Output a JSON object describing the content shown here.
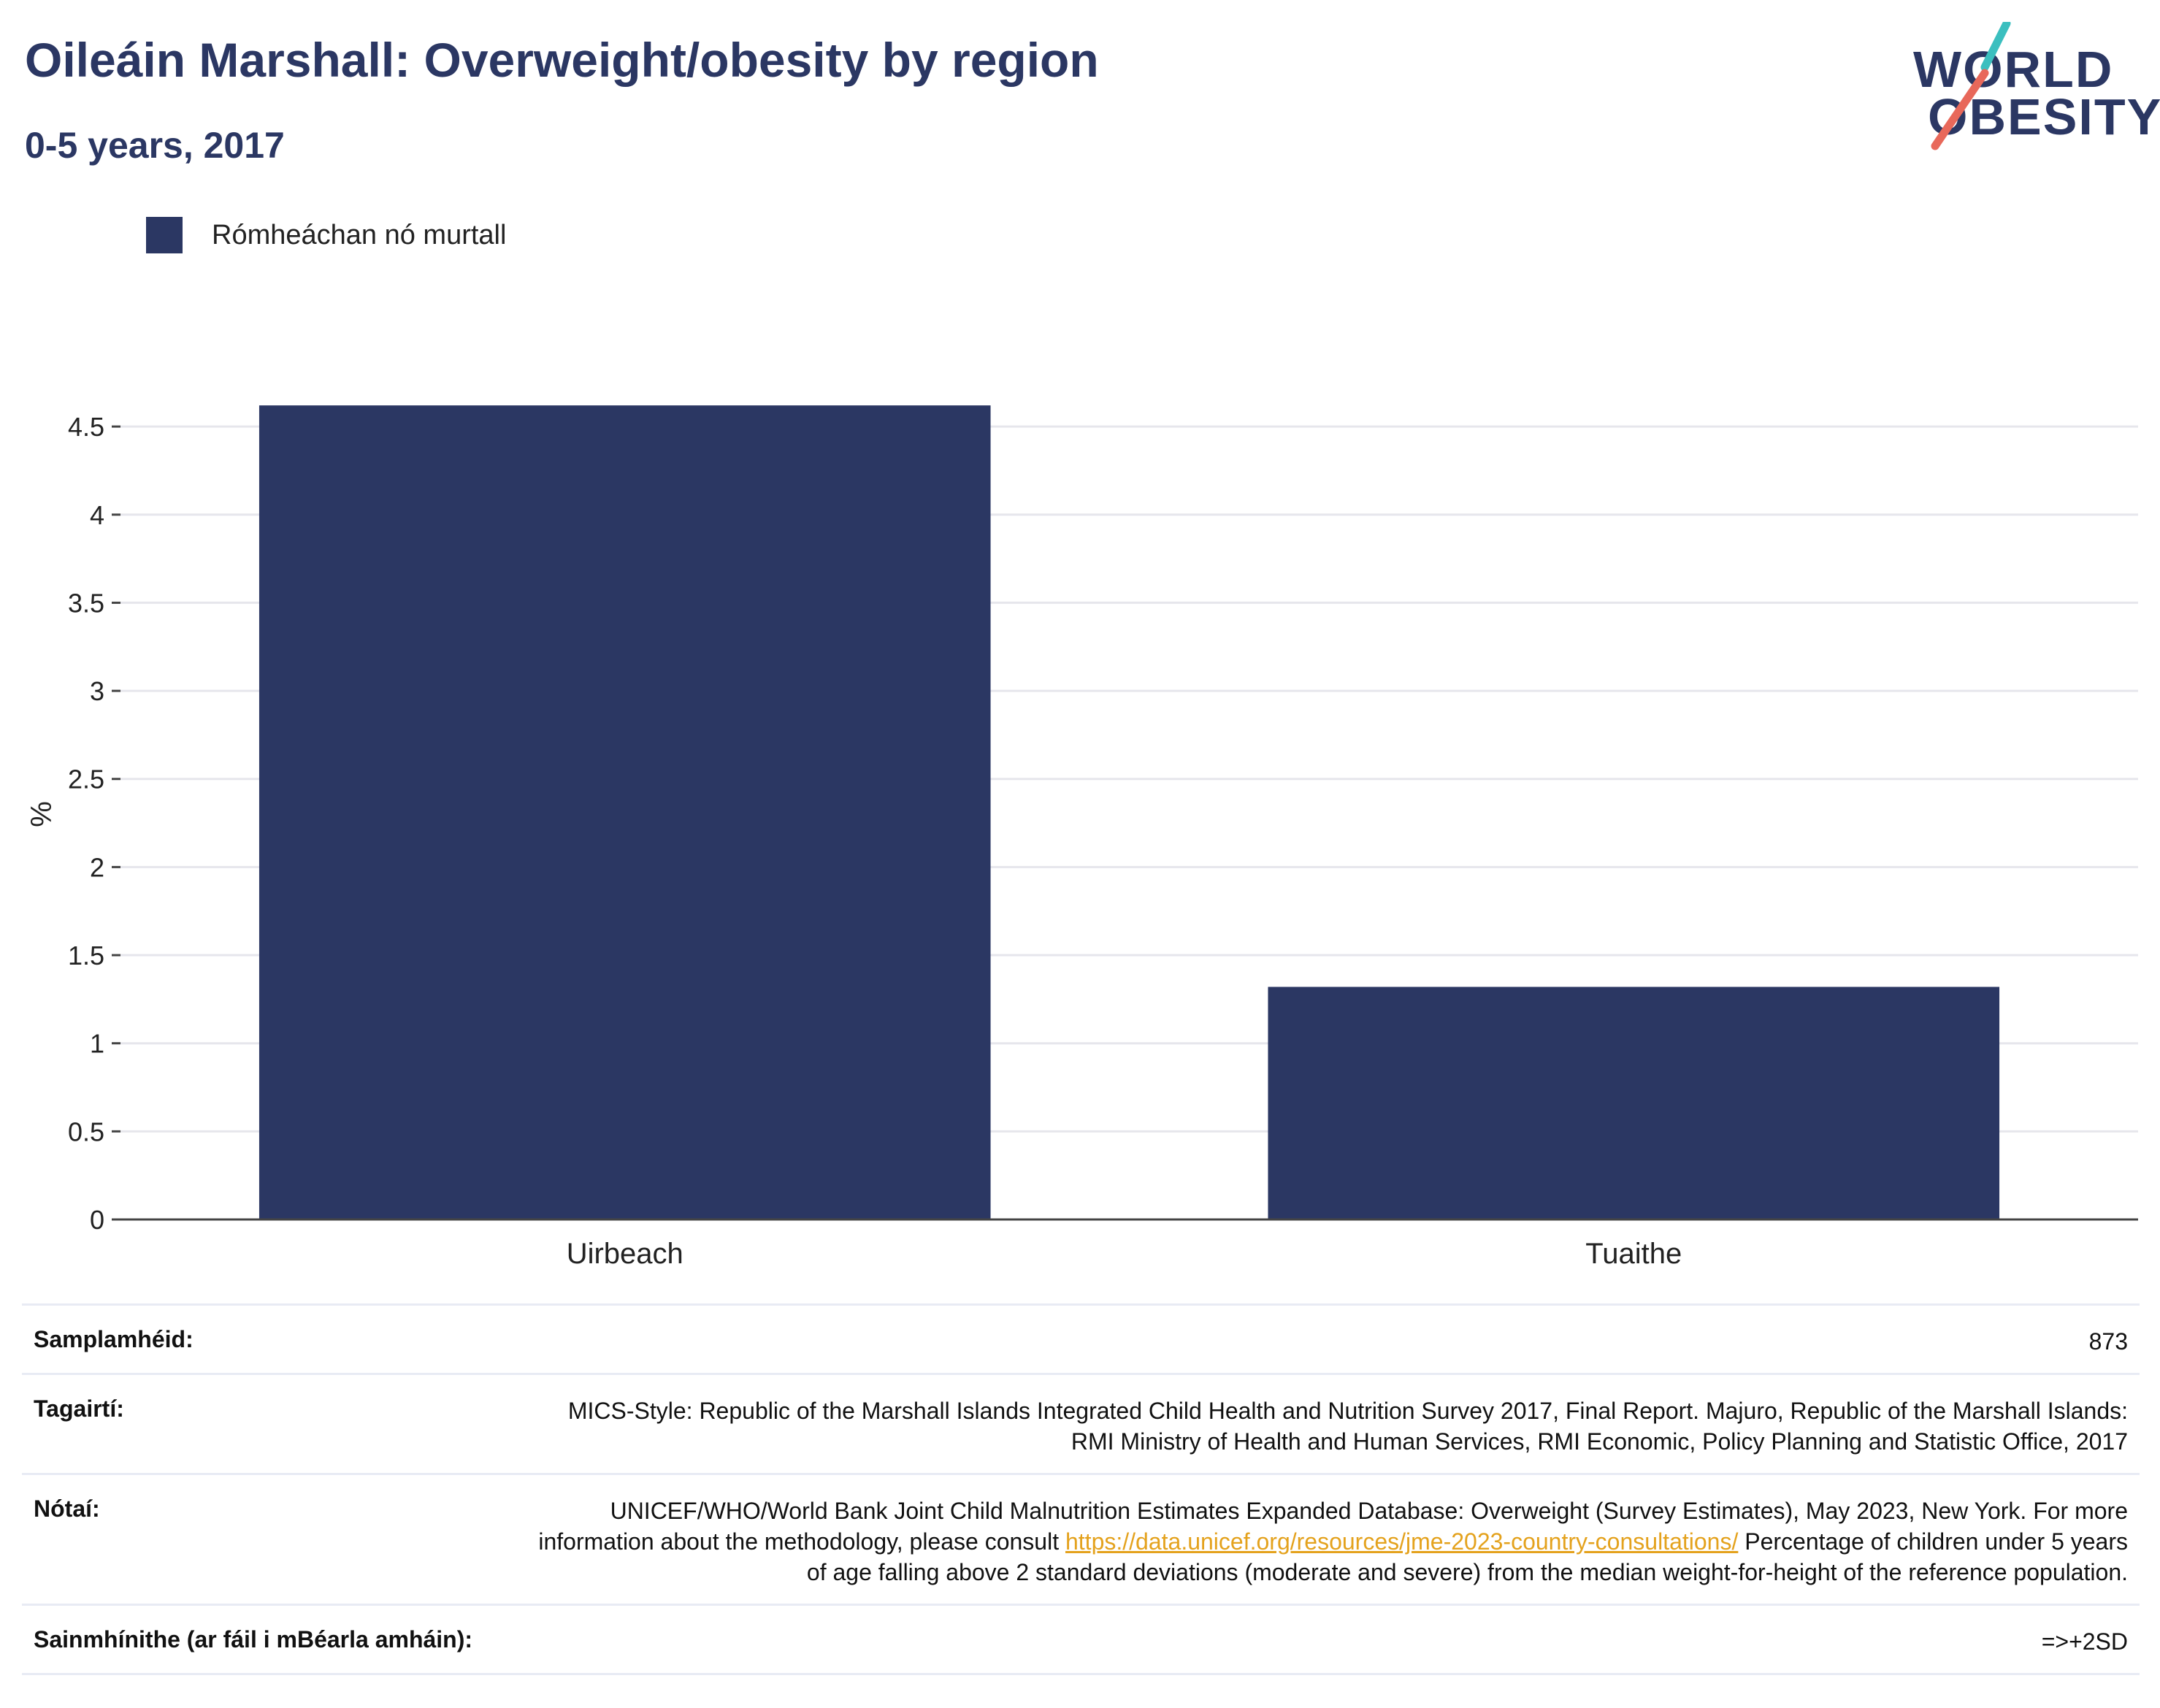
{
  "header": {
    "title": "Oileáin Marshall: Overweight/obesity by region",
    "subtitle": "0-5 years, 2017"
  },
  "logo": {
    "line1": "WORLD",
    "line2": "OBESITY",
    "colors": {
      "text": "#2b3763",
      "slash_top": "#3bbfbf",
      "slash_bottom": "#e8685a"
    }
  },
  "colors": {
    "bar": "#2b3763",
    "grid": "#e6e6ec",
    "axis": "#444444",
    "link": "#e4a21d"
  },
  "chart_data": {
    "type": "bar",
    "categories": [
      "Uirbeach",
      "Tuaithe"
    ],
    "series": [
      {
        "name": "Rómheáchan nó murtall",
        "values": [
          4.62,
          1.32
        ]
      }
    ],
    "ylabel": "%",
    "ylim": [
      0,
      4.6
    ],
    "yticks": [
      0,
      0.5,
      1,
      1.5,
      2,
      2.5,
      3,
      3.5,
      4,
      4.5
    ],
    "ytick_labels": [
      "0",
      "0.5",
      "1",
      "1.5",
      "2",
      "2.5",
      "3",
      "3.5",
      "4",
      "4.5"
    ],
    "grid": true,
    "legend": "top-left"
  },
  "info": {
    "sample_label": "Samplamhéid:",
    "sample_value": "873",
    "refs_label": "Tagairtí:",
    "refs_value": "MICS-Style: Republic of the Marshall Islands Integrated Child Health and Nutrition Survey 2017, Final Report. Majuro, Republic of the Marshall Islands: RMI Ministry of Health and Human Services, RMI Economic, Policy Planning and Statistic Office, 2017",
    "notes_label": "Nótaí:",
    "notes_text_1": "UNICEF/WHO/World Bank Joint Child Malnutrition Estimates Expanded Database: Overweight (Survey Estimates), May 2023, New York. For more information about the methodology, please consult",
    "notes_link": "https://data.unicef.org/resources/jme-2023-country-consultations/",
    "notes_text_2": "Percentage of children under 5 years of age falling above 2 standard deviations (moderate and severe) from the median weight-for-height of the reference population.",
    "defs_label": "Sainmhínithe (ar fáil i mBéarla amháin):",
    "defs_value": "=>+2SD"
  }
}
